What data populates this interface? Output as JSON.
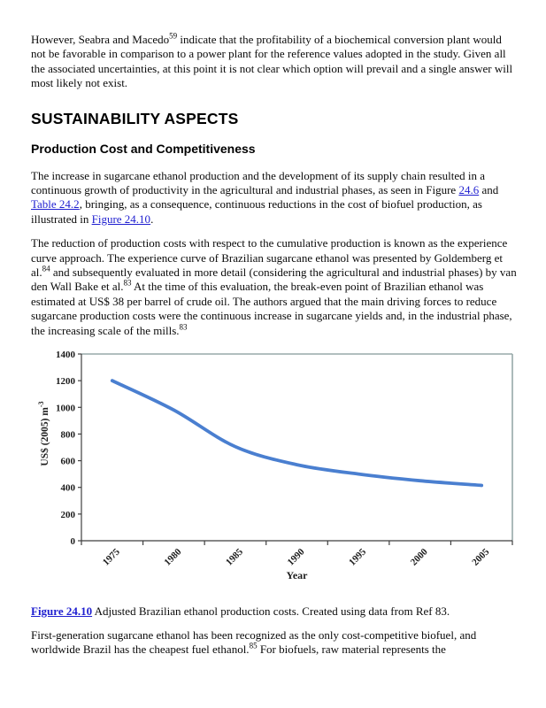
{
  "document": {
    "headings": {
      "section": "SUSTAINABILITY ASPECTS",
      "subsection": "Production Cost and Competitiveness"
    },
    "paragraphs": {
      "p1": [
        {
          "style": "plain",
          "text": "However, Seabra and Macedo"
        },
        {
          "style": "sup",
          "text": "59"
        },
        {
          "style": "plain",
          "text": " indicate that the profitability of a biochemical conversion plant would not be favorable in comparison to a power plant for the reference values adopted in the study. Given all the associated uncertainties, at this point it is not clear which option will prevail and a single answer will most likely not exist."
        }
      ],
      "p2": [
        {
          "style": "plain",
          "text": "The increase in sugarcane ethanol production and the development of its supply chain resulted in a continuous growth of productivity in the agricultural and industrial phases, as seen in Figure "
        },
        {
          "style": "link",
          "text": "24.6"
        },
        {
          "style": "plain",
          "text": " and "
        },
        {
          "style": "link",
          "text": "Table 24.2"
        },
        {
          "style": "plain",
          "text": ", bringing, as a consequence, continuous reductions in the cost of biofuel production, as illustrated in "
        },
        {
          "style": "link",
          "text": "Figure 24.10"
        },
        {
          "style": "plain",
          "text": "."
        }
      ],
      "p3": [
        {
          "style": "plain",
          "text": "The reduction of production costs with respect to the cumulative production is known as the experience curve approach. The experience curve of Brazilian sugarcane ethanol was presented by Goldemberg et al."
        },
        {
          "style": "sup",
          "text": "84"
        },
        {
          "style": "plain",
          "text": " and subsequently evaluated in more detail (considering the agricultural and industrial phases) by van den Wall Bake et al."
        },
        {
          "style": "sup",
          "text": "83"
        },
        {
          "style": "plain",
          "text": " At the time of this evaluation, the break-even point of Brazilian ethanol was estimated at US$ 38 per barrel of crude oil. The authors argued that the main driving forces to reduce sugarcane production costs were the continuous increase in sugarcane yields and, in the industrial phase, the increasing scale of the mills."
        },
        {
          "style": "sup",
          "text": "83"
        }
      ],
      "p4": [
        {
          "style": "plain",
          "text": "First-generation sugarcane ethanol has been recognized as the only cost-competitive biofuel, and worldwide Brazil has the cheapest fuel ethanol."
        },
        {
          "style": "sup",
          "text": "85"
        },
        {
          "style": "plain",
          "text": " For biofuels, raw material represents the"
        }
      ]
    },
    "figure_caption": [
      {
        "style": "figure-link",
        "text": "Figure 24.10"
      },
      {
        "style": "plain",
        "text": " Adjusted Brazilian ethanol production costs. Created using data from Ref 83."
      }
    ]
  },
  "chart_data": {
    "type": "line",
    "title": "",
    "x_labels": [
      "1975",
      "1980",
      "1985",
      "1990",
      "1995",
      "2000",
      "2005"
    ],
    "values": [
      1200,
      980,
      705,
      570,
      500,
      450,
      415
    ],
    "xlabel": "Year",
    "ylabel_main": "US$ (2005) m",
    "ylabel_superscript": "-3",
    "ylim": [
      0,
      1400
    ],
    "ytick_step": 200,
    "yticks": [
      0,
      200,
      400,
      600,
      800,
      1000,
      1200,
      1400
    ],
    "grid": "off",
    "legend": "none",
    "line_color": "#4a7fd0",
    "axis_color": "#3f3f3f",
    "border_color": "#97a8a8"
  },
  "colors": {
    "link": "#1f1fd0",
    "text": "#0a0a0a",
    "background": "#ffffff"
  }
}
